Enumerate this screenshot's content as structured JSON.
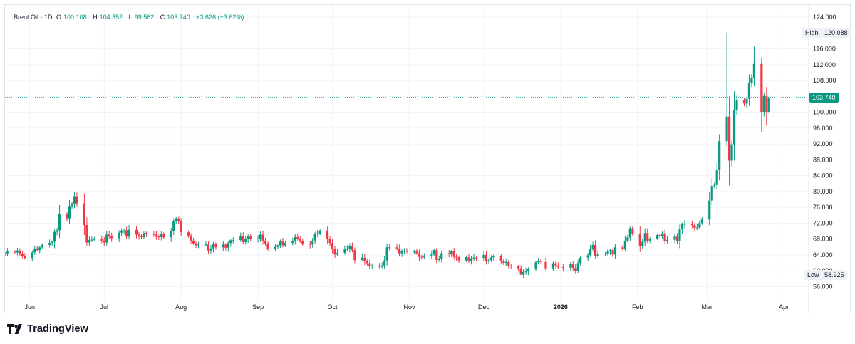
{
  "legend": {
    "symbol": "Brent Oil · 1D",
    "o_label": "O",
    "o_value": "100.108",
    "h_label": "H",
    "h_value": "104.352",
    "l_label": "L",
    "l_value": "99.562",
    "c_label": "C",
    "c_value": "103.740",
    "change": "+3.626 (+3.62%)"
  },
  "high": {
    "label": "High",
    "value": "120.088"
  },
  "low": {
    "label": "Low",
    "value": "58.925"
  },
  "last_price": "103.740",
  "brand": {
    "name": "TradingView"
  },
  "colors": {
    "up": "#089981",
    "down": "#f23645",
    "grid": "#f0f3fa",
    "axis_text": "#131722"
  },
  "chart_data": {
    "type": "candlestick",
    "title": "Brent Oil · 1D",
    "ylim": [
      53,
      126
    ],
    "y_ticks": [
      "56.000",
      "60.000",
      "64.000",
      "68.000",
      "72.000",
      "76.000",
      "80.000",
      "84.000",
      "88.000",
      "92.000",
      "96.000",
      "100.000",
      "104.000",
      "108.000",
      "112.000",
      "116.000",
      "120.000",
      "124.000"
    ],
    "x_ticks": [
      {
        "label": "Jun",
        "date": "2025-06-01"
      },
      {
        "label": "Jul",
        "date": "2025-07-01"
      },
      {
        "label": "Aug",
        "date": "2025-08-01"
      },
      {
        "label": "Sep",
        "date": "2025-09-01"
      },
      {
        "label": "Oct",
        "date": "2025-10-01"
      },
      {
        "label": "Nov",
        "date": "2025-11-01"
      },
      {
        "label": "Dec",
        "date": "2025-12-01"
      },
      {
        "label": "2026",
        "date": "2026-01-01"
      },
      {
        "label": "Feb",
        "date": "2026-02-01"
      },
      {
        "label": "Mar",
        "date": "2026-03-01"
      },
      {
        "label": "Apr",
        "date": "2026-04-01"
      }
    ],
    "x_range": [
      "2025-05-22",
      "2026-04-11"
    ],
    "grid": true,
    "last_price": 103.74,
    "high": 120.088,
    "low": 58.925,
    "closes": [
      [
        "2025-05-22",
        64.4
      ],
      [
        "2025-05-23",
        64.8
      ],
      [
        "2025-05-26",
        64.6
      ],
      [
        "2025-05-27",
        65.1
      ],
      [
        "2025-05-28",
        64.3
      ],
      [
        "2025-05-29",
        63.7
      ],
      [
        "2025-05-30",
        63.2
      ],
      [
        "2025-06-02",
        64.6
      ],
      [
        "2025-06-03",
        65.6
      ],
      [
        "2025-06-04",
        65.2
      ],
      [
        "2025-06-05",
        65.9
      ],
      [
        "2025-06-06",
        66.5
      ],
      [
        "2025-06-09",
        67.0
      ],
      [
        "2025-06-10",
        67.3
      ],
      [
        "2025-06-11",
        69.8
      ],
      [
        "2025-06-12",
        70.2
      ],
      [
        "2025-06-13",
        74.2
      ],
      [
        "2025-06-16",
        73.2
      ],
      [
        "2025-06-17",
        76.3
      ],
      [
        "2025-06-18",
        76.8
      ],
      [
        "2025-06-19",
        78.8
      ],
      [
        "2025-06-20",
        77.0
      ],
      [
        "2025-06-23",
        71.5
      ],
      [
        "2025-06-24",
        67.1
      ],
      [
        "2025-06-25",
        67.7
      ],
      [
        "2025-06-26",
        67.8
      ],
      [
        "2025-06-27",
        67.9
      ],
      [
        "2025-06-30",
        67.6
      ],
      [
        "2025-07-01",
        67.1
      ],
      [
        "2025-07-02",
        69.1
      ],
      [
        "2025-07-03",
        68.8
      ],
      [
        "2025-07-04",
        68.2
      ],
      [
        "2025-07-07",
        69.6
      ],
      [
        "2025-07-08",
        70.1
      ],
      [
        "2025-07-09",
        70.2
      ],
      [
        "2025-07-10",
        68.6
      ],
      [
        "2025-07-11",
        70.3
      ],
      [
        "2025-07-14",
        69.1
      ],
      [
        "2025-07-15",
        68.7
      ],
      [
        "2025-07-16",
        68.5
      ],
      [
        "2025-07-17",
        69.5
      ],
      [
        "2025-07-18",
        69.3
      ],
      [
        "2025-07-21",
        69.2
      ],
      [
        "2025-07-22",
        68.6
      ],
      [
        "2025-07-23",
        68.5
      ],
      [
        "2025-07-24",
        69.2
      ],
      [
        "2025-07-25",
        68.4
      ],
      [
        "2025-07-28",
        70.0
      ],
      [
        "2025-07-29",
        72.5
      ],
      [
        "2025-07-30",
        73.2
      ],
      [
        "2025-07-31",
        72.5
      ],
      [
        "2025-08-01",
        69.7
      ],
      [
        "2025-08-04",
        68.8
      ],
      [
        "2025-08-05",
        67.6
      ],
      [
        "2025-08-06",
        66.9
      ],
      [
        "2025-08-07",
        66.4
      ],
      [
        "2025-08-08",
        66.6
      ],
      [
        "2025-08-11",
        66.6
      ],
      [
        "2025-08-12",
        65.1
      ],
      [
        "2025-08-13",
        65.6
      ],
      [
        "2025-08-14",
        66.8
      ],
      [
        "2025-08-15",
        65.9
      ],
      [
        "2025-08-18",
        66.6
      ],
      [
        "2025-08-19",
        65.8
      ],
      [
        "2025-08-20",
        67.0
      ],
      [
        "2025-08-21",
        67.7
      ],
      [
        "2025-08-22",
        67.7
      ],
      [
        "2025-08-25",
        68.8
      ],
      [
        "2025-08-26",
        67.2
      ],
      [
        "2025-08-27",
        68.0
      ],
      [
        "2025-08-28",
        68.6
      ],
      [
        "2025-08-29",
        68.1
      ],
      [
        "2025-09-01",
        68.1
      ],
      [
        "2025-09-02",
        69.1
      ],
      [
        "2025-09-03",
        67.6
      ],
      [
        "2025-09-04",
        66.9
      ],
      [
        "2025-09-05",
        65.5
      ],
      [
        "2025-09-08",
        66.0
      ],
      [
        "2025-09-09",
        66.4
      ],
      [
        "2025-09-10",
        67.5
      ],
      [
        "2025-09-11",
        66.4
      ],
      [
        "2025-09-12",
        67.0
      ],
      [
        "2025-09-15",
        67.4
      ],
      [
        "2025-09-16",
        68.5
      ],
      [
        "2025-09-17",
        68.0
      ],
      [
        "2025-09-18",
        67.4
      ],
      [
        "2025-09-19",
        66.7
      ],
      [
        "2025-09-22",
        66.6
      ],
      [
        "2025-09-23",
        67.6
      ],
      [
        "2025-09-24",
        69.3
      ],
      [
        "2025-09-25",
        69.4
      ],
      [
        "2025-09-26",
        70.1
      ],
      [
        "2025-09-29",
        68.0
      ],
      [
        "2025-09-30",
        67.0
      ],
      [
        "2025-10-01",
        65.4
      ],
      [
        "2025-10-02",
        64.1
      ],
      [
        "2025-10-03",
        64.5
      ],
      [
        "2025-10-06",
        65.5
      ],
      [
        "2025-10-07",
        65.5
      ],
      [
        "2025-10-08",
        66.3
      ],
      [
        "2025-10-09",
        65.2
      ],
      [
        "2025-10-10",
        62.7
      ],
      [
        "2025-10-13",
        63.3
      ],
      [
        "2025-10-14",
        62.4
      ],
      [
        "2025-10-15",
        61.9
      ],
      [
        "2025-10-16",
        61.1
      ],
      [
        "2025-10-17",
        61.3
      ],
      [
        "2025-10-20",
        61.0
      ],
      [
        "2025-10-21",
        61.3
      ],
      [
        "2025-10-22",
        62.6
      ],
      [
        "2025-10-23",
        65.9
      ],
      [
        "2025-10-24",
        65.9
      ],
      [
        "2025-10-27",
        65.6
      ],
      [
        "2025-10-28",
        64.4
      ],
      [
        "2025-10-29",
        64.9
      ],
      [
        "2025-10-30",
        65.0
      ],
      [
        "2025-10-31",
        64.8
      ],
      [
        "2025-11-03",
        64.9
      ],
      [
        "2025-11-04",
        64.4
      ],
      [
        "2025-11-05",
        63.5
      ],
      [
        "2025-11-06",
        63.4
      ],
      [
        "2025-11-07",
        63.6
      ],
      [
        "2025-11-10",
        64.1
      ],
      [
        "2025-11-11",
        65.2
      ],
      [
        "2025-11-12",
        62.7
      ],
      [
        "2025-11-13",
        63.0
      ],
      [
        "2025-11-14",
        64.4
      ],
      [
        "2025-11-17",
        64.2
      ],
      [
        "2025-11-18",
        64.9
      ],
      [
        "2025-11-19",
        63.5
      ],
      [
        "2025-11-20",
        63.4
      ],
      [
        "2025-11-21",
        62.6
      ],
      [
        "2025-11-24",
        63.4
      ],
      [
        "2025-11-25",
        62.5
      ],
      [
        "2025-11-26",
        63.1
      ],
      [
        "2025-11-27",
        63.3
      ],
      [
        "2025-11-28",
        63.2
      ],
      [
        "2025-12-01",
        64.0
      ],
      [
        "2025-12-02",
        62.5
      ],
      [
        "2025-12-03",
        62.7
      ],
      [
        "2025-12-04",
        63.3
      ],
      [
        "2025-12-05",
        63.8
      ],
      [
        "2025-12-08",
        62.5
      ],
      [
        "2025-12-09",
        62.0
      ],
      [
        "2025-12-10",
        62.2
      ],
      [
        "2025-12-11",
        61.3
      ],
      [
        "2025-12-12",
        61.1
      ],
      [
        "2025-12-15",
        60.6
      ],
      [
        "2025-12-16",
        59.0
      ],
      [
        "2025-12-17",
        59.7
      ],
      [
        "2025-12-18",
        59.8
      ],
      [
        "2025-12-19",
        60.5
      ],
      [
        "2025-12-22",
        62.1
      ],
      [
        "2025-12-23",
        62.4
      ],
      [
        "2025-12-24",
        62.2
      ],
      [
        "2025-12-26",
        60.6
      ],
      [
        "2025-12-29",
        61.9
      ],
      [
        "2025-12-30",
        61.3
      ],
      [
        "2025-12-31",
        60.9
      ],
      [
        "2026-01-02",
        60.8
      ],
      [
        "2026-01-05",
        61.8
      ],
      [
        "2026-01-06",
        60.7
      ],
      [
        "2026-01-07",
        60.0
      ],
      [
        "2026-01-08",
        61.9
      ],
      [
        "2026-01-09",
        63.3
      ],
      [
        "2026-01-12",
        63.9
      ],
      [
        "2026-01-13",
        65.5
      ],
      [
        "2026-01-14",
        66.5
      ],
      [
        "2026-01-15",
        63.8
      ],
      [
        "2026-01-16",
        64.1
      ],
      [
        "2026-01-19",
        64.3
      ],
      [
        "2026-01-20",
        64.9
      ],
      [
        "2026-01-21",
        65.2
      ],
      [
        "2026-01-22",
        64.1
      ],
      [
        "2026-01-23",
        65.9
      ],
      [
        "2026-01-26",
        65.6
      ],
      [
        "2026-01-27",
        67.6
      ],
      [
        "2026-01-28",
        68.4
      ],
      [
        "2026-01-29",
        70.7
      ],
      [
        "2026-01-30",
        69.3
      ],
      [
        "2026-02-02",
        66.3
      ],
      [
        "2026-02-03",
        67.3
      ],
      [
        "2026-02-04",
        69.5
      ],
      [
        "2026-02-05",
        67.6
      ],
      [
        "2026-02-06",
        68.1
      ],
      [
        "2026-02-09",
        69.0
      ],
      [
        "2026-02-10",
        68.8
      ],
      [
        "2026-02-11",
        69.4
      ],
      [
        "2026-02-12",
        67.5
      ],
      [
        "2026-02-13",
        67.8
      ],
      [
        "2026-02-16",
        68.6
      ],
      [
        "2026-02-17",
        67.4
      ],
      [
        "2026-02-18",
        70.4
      ],
      [
        "2026-02-19",
        71.7
      ],
      [
        "2026-02-20",
        71.8
      ],
      [
        "2026-02-23",
        71.5
      ],
      [
        "2026-02-24",
        70.8
      ],
      [
        "2026-02-25",
        70.9
      ],
      [
        "2026-02-26",
        72.0
      ],
      [
        "2026-02-27",
        72.9
      ],
      [
        "2026-03-02",
        77.7
      ],
      [
        "2026-03-03",
        81.4
      ],
      [
        "2026-03-04",
        81.6
      ],
      [
        "2026-03-05",
        85.4
      ],
      [
        "2026-03-06",
        92.7
      ],
      [
        "2026-03-09",
        98.9
      ],
      [
        "2026-03-10",
        87.8
      ],
      [
        "2026-03-11",
        91.9
      ],
      [
        "2026-03-12",
        100.5
      ],
      [
        "2026-03-13",
        103.1
      ],
      [
        "2026-03-16",
        102.2
      ],
      [
        "2026-03-17",
        103.4
      ],
      [
        "2026-03-18",
        107.4
      ],
      [
        "2026-03-19",
        108.7
      ],
      [
        "2026-03-20",
        112.2
      ],
      [
        "2026-03-23",
        100.1
      ],
      [
        "2026-03-24",
        104.1
      ],
      [
        "2026-03-25",
        100.1
      ],
      [
        "2026-03-26",
        103.7
      ]
    ]
  }
}
